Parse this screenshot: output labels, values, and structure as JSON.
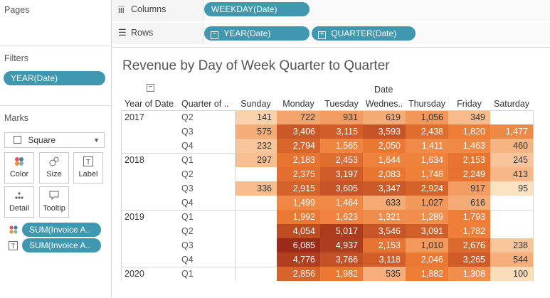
{
  "left": {
    "pages_title": "Pages",
    "filters_title": "Filters",
    "filter_pill": "YEAR(Date)",
    "marks_title": "Marks",
    "mark_type": "Square",
    "cards": [
      "Color",
      "Size",
      "Label",
      "Detail",
      "Tooltip"
    ],
    "mark_pills": [
      "SUM(Invoice A..",
      "SUM(Invoice A.."
    ]
  },
  "shelves": {
    "columns_label": "Columns",
    "columns_pill": "WEEKDAY(Date)",
    "rows_label": "Rows",
    "rows_pills": [
      "YEAR(Date)",
      "QUARTER(Date)"
    ]
  },
  "viz": {
    "title": "Revenue by Day of Week Quarter to Quarter",
    "date_header": "Date",
    "row_header_year": "Year of Date",
    "row_header_quarter": "Quarter of ..",
    "days": [
      "Sunday",
      "Monday",
      "Tuesday",
      "Wednes..",
      "Thursday",
      "Friday",
      "Saturday"
    ]
  },
  "table_data": {
    "rows": [
      {
        "year": "2017",
        "quarter": "Q2",
        "values": [
          141,
          722,
          931,
          619,
          1056,
          349,
          null
        ]
      },
      {
        "year": "",
        "quarter": "Q3",
        "values": [
          575,
          3406,
          3115,
          3593,
          2438,
          1820,
          1477
        ]
      },
      {
        "year": "",
        "quarter": "Q4",
        "values": [
          232,
          2794,
          1565,
          2050,
          1411,
          1463,
          460
        ]
      },
      {
        "year": "2018",
        "quarter": "Q1",
        "values": [
          297,
          2183,
          2453,
          1644,
          1634,
          2153,
          245
        ]
      },
      {
        "year": "",
        "quarter": "Q2",
        "values": [
          null,
          2375,
          3197,
          2083,
          1748,
          2249,
          413
        ]
      },
      {
        "year": "",
        "quarter": "Q3",
        "values": [
          336,
          2915,
          3605,
          3347,
          2924,
          917,
          95
        ]
      },
      {
        "year": "",
        "quarter": "Q4",
        "values": [
          null,
          1499,
          1464,
          633,
          1027,
          616,
          null
        ]
      },
      {
        "year": "2019",
        "quarter": "Q1",
        "values": [
          null,
          1992,
          1623,
          1321,
          1289,
          1793,
          null
        ]
      },
      {
        "year": "",
        "quarter": "Q2",
        "values": [
          null,
          4054,
          5017,
          3546,
          3091,
          1782,
          null
        ]
      },
      {
        "year": "",
        "quarter": "Q3",
        "values": [
          null,
          6085,
          4937,
          2153,
          1010,
          2676,
          238
        ]
      },
      {
        "year": "",
        "quarter": "Q4",
        "values": [
          null,
          4776,
          3766,
          3118,
          2046,
          3265,
          544
        ]
      },
      {
        "year": "2020",
        "quarter": "Q1",
        "values": [
          null,
          2856,
          1982,
          535,
          1882,
          1308,
          100
        ]
      }
    ],
    "color_min": "#fde2c2",
    "color_mid": "#ee7b33",
    "color_max": "#9c2a18"
  }
}
